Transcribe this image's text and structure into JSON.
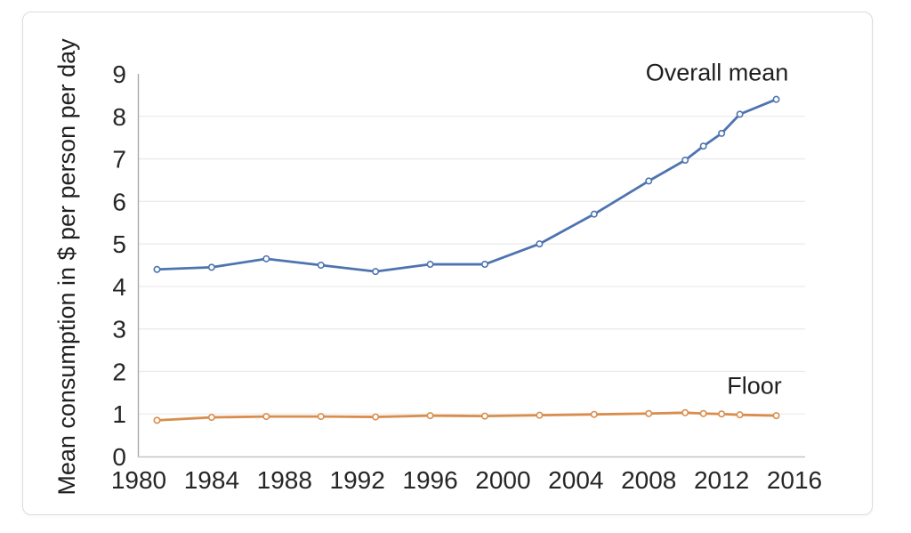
{
  "page": {
    "background_color": "#ffffff",
    "card_border_color": "#dcdcdc"
  },
  "chart_data": {
    "type": "line",
    "title": "",
    "xlabel": "",
    "ylabel": "Mean consumption in $ per person per day",
    "xlim": [
      1980,
      2016
    ],
    "ylim": [
      0,
      9
    ],
    "grid": "horizontal",
    "legend_position": "inline-annotations",
    "x_ticks": [
      1980,
      1984,
      1988,
      1992,
      1996,
      2000,
      2004,
      2008,
      2012,
      2016
    ],
    "y_ticks": [
      0,
      1,
      2,
      3,
      4,
      5,
      6,
      7,
      8,
      9
    ],
    "x": [
      1981,
      1984,
      1987,
      1990,
      1993,
      1996,
      1999,
      2002,
      2005,
      2008,
      2010,
      2011,
      2012,
      2013,
      2015
    ],
    "series": [
      {
        "name": "Overall mean",
        "color": "#4e74b0",
        "marker": "open-circle",
        "values": [
          4.4,
          4.45,
          4.65,
          4.5,
          4.35,
          4.52,
          4.52,
          5.0,
          5.7,
          6.48,
          6.97,
          7.3,
          7.6,
          8.05,
          8.4
        ]
      },
      {
        "name": "Floor",
        "color": "#d98d4d",
        "marker": "open-circle",
        "values": [
          0.85,
          0.92,
          0.94,
          0.94,
          0.93,
          0.96,
          0.95,
          0.97,
          0.99,
          1.01,
          1.03,
          1.01,
          1.0,
          0.98,
          0.96
        ]
      }
    ],
    "annotations": [
      {
        "text": "Overall mean"
      },
      {
        "text": "Floor"
      }
    ]
  }
}
